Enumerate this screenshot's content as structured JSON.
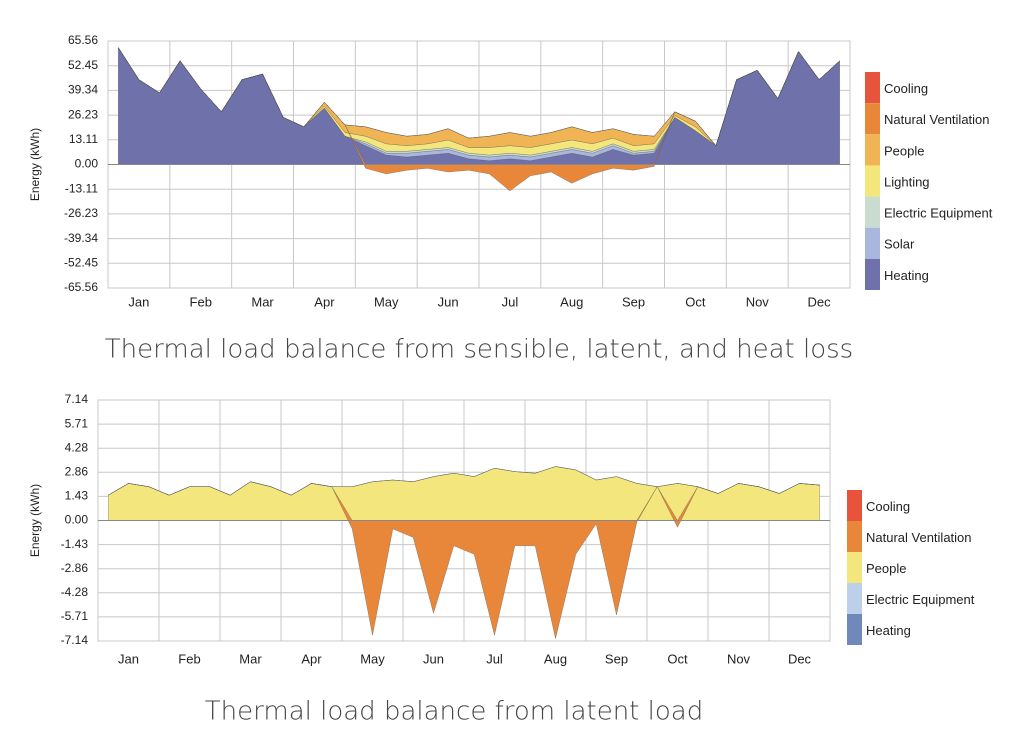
{
  "chart_data": [
    {
      "type": "area",
      "stacked": true,
      "grid": true,
      "title": "Thermal load balance from sensible, latent, and heat loss",
      "y_label": "Energy (kWh)",
      "categories": [
        null,
        "Jan",
        null,
        null,
        "Feb",
        null,
        null,
        "Mar",
        null,
        null,
        "Apr",
        null,
        null,
        "May",
        null,
        null,
        "Jun",
        null,
        null,
        "Jul",
        null,
        null,
        "Aug",
        null,
        null,
        "Sep",
        null,
        null,
        "Oct",
        null,
        null,
        "Nov",
        null,
        null,
        "Dec",
        null
      ],
      "ylim": [
        -65.56,
        65.56
      ],
      "yticks": [
        65.56,
        52.45,
        39.34,
        26.23,
        13.11,
        {
          "value": 0,
          "label": "0.00"
        },
        -13.11,
        -26.23,
        -39.34,
        -52.45,
        -65.56
      ],
      "series": [
        {
          "name": "Cooling",
          "color": "#e8533b",
          "values": [
            0,
            0,
            0,
            0,
            0,
            0,
            0,
            0,
            0,
            0,
            0,
            0,
            0,
            0,
            0,
            0,
            0,
            0,
            0,
            0,
            0,
            0,
            0,
            0,
            0,
            0,
            0,
            0,
            0,
            0,
            0,
            0,
            0,
            0,
            0,
            0
          ]
        },
        {
          "name": "Natural Ventilation",
          "color": "#e8873a",
          "values": [
            0,
            0,
            0,
            0,
            0,
            0,
            0,
            0,
            0,
            0,
            0,
            0,
            -2,
            -5,
            -3,
            -2,
            -4,
            -3,
            -5,
            -14,
            -6,
            -4,
            -10,
            -5,
            -2,
            -3,
            -1,
            0,
            0,
            0,
            0,
            0,
            0,
            0,
            0,
            0
          ]
        },
        {
          "name": "People",
          "color": "#f0b454",
          "values": [
            0,
            0,
            0,
            0,
            0,
            0,
            0,
            0,
            0,
            0,
            2,
            4,
            5,
            6,
            5,
            5,
            6,
            5,
            6,
            7,
            6,
            6,
            7,
            6,
            5,
            6,
            4,
            2,
            3,
            0,
            0,
            0,
            0,
            0,
            0,
            0
          ]
        },
        {
          "name": "Lighting",
          "color": "#f2e67c",
          "values": [
            0,
            0,
            0,
            0,
            0,
            0,
            0,
            0,
            0,
            0,
            1,
            2,
            3,
            4,
            3,
            3,
            4,
            3,
            4,
            4,
            4,
            4,
            4,
            4,
            3,
            3,
            3,
            1,
            2,
            0,
            0,
            0,
            0,
            0,
            0,
            0
          ]
        },
        {
          "name": "Electric Equipment",
          "color": "#c9dccf",
          "values": [
            0,
            0,
            0,
            0,
            0,
            0,
            0,
            0,
            0,
            0,
            0,
            0,
            1,
            1,
            1,
            1,
            1,
            1,
            1,
            1,
            1,
            1,
            1,
            1,
            1,
            1,
            1,
            0,
            0,
            0,
            0,
            0,
            0,
            0,
            0,
            0
          ]
        },
        {
          "name": "Solar",
          "color": "#a9b7df",
          "values": [
            0,
            0,
            0,
            0,
            0,
            0,
            0,
            0,
            0,
            0,
            0,
            0,
            1,
            1,
            2,
            2,
            2,
            2,
            2,
            2,
            2,
            2,
            2,
            2,
            2,
            1,
            1,
            0,
            0,
            0,
            0,
            0,
            0,
            0,
            0,
            0
          ]
        },
        {
          "name": "Heating",
          "color": "#6f71aa",
          "values": [
            62,
            45,
            38,
            55,
            40,
            28,
            45,
            48,
            25,
            20,
            30,
            15,
            10,
            5,
            4,
            5,
            6,
            3,
            2,
            3,
            2,
            4,
            6,
            4,
            8,
            5,
            6,
            25,
            18,
            10,
            45,
            50,
            35,
            60,
            45,
            55
          ]
        }
      ]
    },
    {
      "type": "area",
      "stacked": true,
      "grid": true,
      "title": "Thermal load balance from latent load",
      "y_label": "Energy (kWh)",
      "categories": [
        null,
        "Jan",
        null,
        null,
        "Feb",
        null,
        null,
        "Mar",
        null,
        null,
        "Apr",
        null,
        null,
        "May",
        null,
        null,
        "Jun",
        null,
        null,
        "Jul",
        null,
        null,
        "Aug",
        null,
        null,
        "Sep",
        null,
        null,
        "Oct",
        null,
        null,
        "Nov",
        null,
        null,
        "Dec",
        null
      ],
      "ylim": [
        -7.14,
        7.14
      ],
      "yticks": [
        7.14,
        5.71,
        4.28,
        2.86,
        1.43,
        {
          "value": 0,
          "label": "0.00"
        },
        -1.43,
        -2.86,
        -4.28,
        -5.71,
        -7.14
      ],
      "series": [
        {
          "name": "Cooling",
          "color": "#e8533b",
          "values": [
            0,
            0,
            0,
            0,
            0,
            0,
            0,
            0,
            0,
            0,
            0,
            0,
            0,
            0,
            0,
            0,
            0,
            0,
            0,
            0,
            0,
            0,
            0,
            0,
            0,
            0,
            0,
            0,
            0,
            0,
            0,
            0,
            0,
            0,
            0,
            0
          ]
        },
        {
          "name": "Natural Ventilation",
          "color": "#e8873a",
          "values": [
            0,
            0,
            0,
            0,
            0,
            0,
            0,
            0,
            0,
            0,
            0,
            0,
            -0.5,
            -6.8,
            -0.5,
            -1,
            -5.5,
            -1.5,
            -2,
            -6.8,
            -1.5,
            -1.5,
            -7,
            -2,
            -0.2,
            -5.6,
            -0.1,
            0,
            -0.4,
            0,
            0,
            0,
            0,
            0,
            0,
            0
          ]
        },
        {
          "name": "People",
          "color": "#f2e67c",
          "values": [
            1.5,
            2.2,
            2,
            1.5,
            2,
            2,
            1.5,
            2.3,
            2,
            1.5,
            2.2,
            2,
            2,
            2.3,
            2.4,
            2.3,
            2.6,
            2.8,
            2.6,
            3.1,
            2.9,
            2.8,
            3.2,
            3,
            2.4,
            2.6,
            2.2,
            2,
            2.2,
            2,
            1.6,
            2.2,
            2,
            1.6,
            2.2,
            2.1
          ]
        },
        {
          "name": "Electric Equipment",
          "color": "#bcd0ea",
          "values": [
            0,
            0,
            0,
            0,
            0,
            0,
            0,
            0,
            0,
            0,
            0,
            0,
            0,
            0,
            0,
            0,
            0,
            0,
            0,
            0,
            0,
            0,
            0,
            0,
            0,
            0,
            0,
            0,
            0,
            0,
            0,
            0,
            0,
            0,
            0,
            0
          ]
        },
        {
          "name": "Heating",
          "color": "#6f89bb",
          "values": [
            0,
            0,
            0,
            0,
            0,
            0,
            0,
            0,
            0,
            0,
            0,
            0,
            0,
            0,
            0,
            0,
            0,
            0,
            0,
            0,
            0,
            0,
            0,
            0,
            0,
            0,
            0,
            0,
            0,
            0,
            0,
            0,
            0,
            0,
            0,
            0
          ]
        }
      ]
    }
  ]
}
